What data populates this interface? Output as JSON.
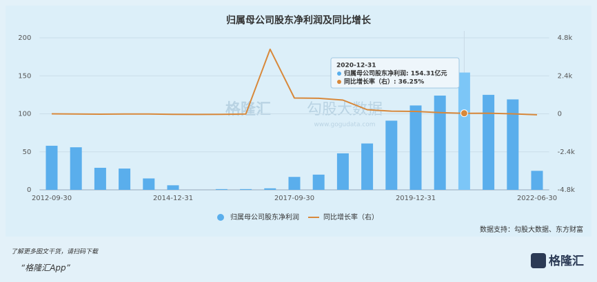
{
  "chart_data": {
    "type": "bar_line",
    "title": "归属母公司股东净利润及同比增长",
    "categories": [
      "2012-09-30",
      null,
      null,
      null,
      null,
      "2014-12-31",
      null,
      null,
      null,
      null,
      "2017-09-30",
      null,
      null,
      null,
      null,
      "2019-12-31",
      null,
      null,
      null,
      null,
      "2022-06-30"
    ],
    "series": [
      {
        "name": "归属母公司股东净利润",
        "type": "bar",
        "color": "#5aaeec",
        "values": [
          58,
          56,
          29,
          28,
          15,
          6,
          null,
          1,
          1,
          2,
          17,
          20,
          48,
          61,
          91,
          111,
          124,
          154.31,
          125,
          119,
          25
        ]
      },
      {
        "name": "同比增长率（右）",
        "type": "line",
        "axis": "y2",
        "color": "#d8883a",
        "values": [
          0,
          -10,
          -20,
          -15,
          -10,
          -30,
          -40,
          -30,
          -10,
          4080,
          1000,
          980,
          870,
          260,
          170,
          150,
          80,
          36.25,
          40,
          0,
          -60
        ]
      }
    ],
    "ylim": [
      0,
      200
    ],
    "yticks": [
      0,
      50,
      100,
      150,
      200
    ],
    "y2lim": [
      -4800,
      4800
    ],
    "y2ticks": [
      {
        "value": -4800,
        "label": "-4.8k"
      },
      {
        "value": -2400,
        "label": "-2.4k"
      },
      {
        "value": 0,
        "label": "0"
      },
      {
        "value": 2400,
        "label": "2.4k"
      },
      {
        "value": 4800,
        "label": "4.8k"
      }
    ],
    "grid": true,
    "legend": "bottom",
    "tooltip": {
      "date": "2020-12-31",
      "rows": [
        "归属母公司股东净利润: 154.31亿元",
        "同比增长率（右）: 36.25%"
      ]
    },
    "source": "数据支持：勾股大数据、东方财富",
    "watermark": [
      "格隆汇",
      "勾股大数据",
      "www.gogudata.com"
    ]
  },
  "footer": {
    "note": "了解更多图文干货，请扫码下载",
    "app": "“格隆汇App”",
    "logo": "格隆汇"
  }
}
